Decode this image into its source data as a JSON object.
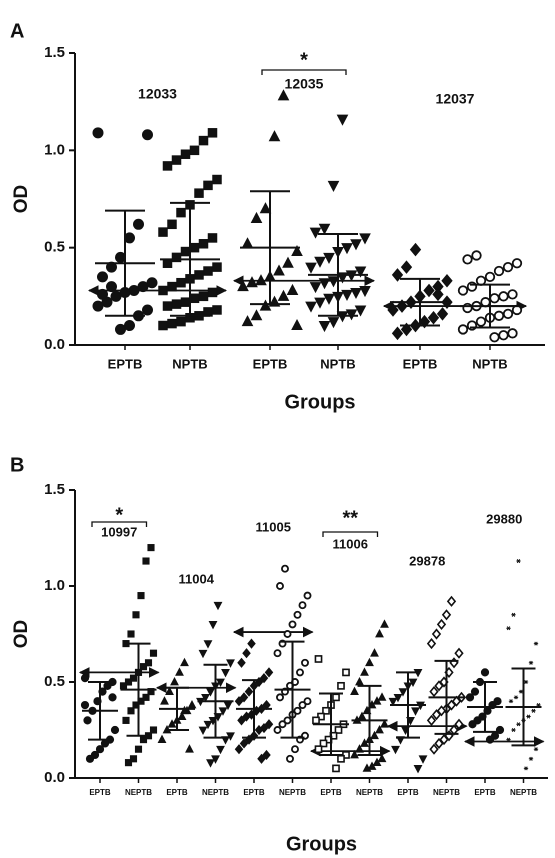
{
  "chart_data": [
    {
      "type": "scatter",
      "panel": "A",
      "ylabel": "OD",
      "xlabel": "Groups",
      "ylim": [
        0,
        1.5
      ],
      "yticks": [
        {
          "value": 0,
          "label": "0.0"
        },
        0.5,
        {
          "value": 1,
          "label": "1.0"
        },
        1.5
      ],
      "categories": [
        "EPTB",
        "NPTB",
        "EPTB",
        "NPTB",
        "EPTB",
        "NPTB"
      ],
      "markers": [
        "circle",
        "square",
        "triangle",
        "triangle-down",
        "diamond",
        "ring"
      ],
      "groups": [
        {
          "name": "12033",
          "cutoff": 0.28
        },
        {
          "name": "12035",
          "cutoff": 0.33,
          "significance": "*"
        },
        {
          "name": "12037",
          "cutoff": 0.2
        }
      ],
      "points": [
        [
          1.09,
          1.08,
          0.62,
          0.55,
          0.45,
          0.4,
          0.35,
          0.32,
          0.3,
          0.28,
          0.27,
          0.25,
          0.22,
          0.2,
          0.18,
          0.15,
          0.1,
          0.08,
          0.3,
          0.26
        ],
        [
          1.09,
          1.05,
          1.0,
          0.98,
          0.95,
          0.92,
          0.85,
          0.82,
          0.78,
          0.72,
          0.68,
          0.62,
          0.58,
          0.55,
          0.52,
          0.5,
          0.48,
          0.45,
          0.42,
          0.4,
          0.38,
          0.36,
          0.34,
          0.32,
          0.3,
          0.28,
          0.27,
          0.25,
          0.24,
          0.22,
          0.21,
          0.2,
          0.18,
          0.17,
          0.15,
          0.14,
          0.12,
          0.11,
          0.1
        ],
        [
          1.28,
          1.07,
          0.7,
          0.65,
          0.52,
          0.48,
          0.42,
          0.38,
          0.35,
          0.33,
          0.32,
          0.3,
          0.28,
          0.25,
          0.22,
          0.2,
          0.15,
          0.12,
          0.1
        ],
        [
          1.16,
          0.82,
          0.6,
          0.58,
          0.55,
          0.52,
          0.5,
          0.48,
          0.45,
          0.43,
          0.4,
          0.38,
          0.36,
          0.35,
          0.33,
          0.32,
          0.3,
          0.28,
          0.27,
          0.26,
          0.25,
          0.24,
          0.22,
          0.2,
          0.18,
          0.16,
          0.15,
          0.12,
          0.1
        ],
        [
          0.49,
          0.4,
          0.36,
          0.33,
          0.3,
          0.28,
          0.25,
          0.22,
          0.2,
          0.18,
          0.16,
          0.14,
          0.12,
          0.1,
          0.08,
          0.06,
          0.22,
          0.26
        ],
        [
          0.46,
          0.44,
          0.42,
          0.4,
          0.38,
          0.35,
          0.33,
          0.3,
          0.28,
          0.26,
          0.25,
          0.24,
          0.22,
          0.2,
          0.19,
          0.18,
          0.16,
          0.15,
          0.14,
          0.12,
          0.1,
          0.08,
          0.06,
          0.05,
          0.04
        ]
      ],
      "means": [
        0.42,
        0.44,
        0.5,
        0.36,
        0.22,
        0.2
      ],
      "sds": [
        0.27,
        0.29,
        0.29,
        0.21,
        0.12,
        0.11
      ]
    },
    {
      "type": "scatter",
      "panel": "B",
      "ylabel": "OD",
      "xlabel": "Groups",
      "ylim": [
        0,
        1.5
      ],
      "yticks": [
        {
          "value": 0,
          "label": "0.0"
        },
        0.5,
        {
          "value": 1,
          "label": "1.0"
        },
        1.5
      ],
      "categories": [
        "EPTB",
        "NEPTB",
        "EPTB",
        "NEPTB",
        "EPTB",
        "NEPTB",
        "EPTB",
        "NEPTB",
        "EPTB",
        "NEPTB",
        "EPTB",
        "NEPTB"
      ],
      "markers": [
        "circle",
        "square",
        "triangle",
        "triangle-down",
        "diamond",
        "ring",
        "square-open",
        "triangle",
        "triangle-down",
        "diamond-open",
        "circle",
        "star"
      ],
      "groups": [
        {
          "name": "10997",
          "cutoff": 0.55,
          "significance": "*"
        },
        {
          "name": "11004",
          "cutoff": 0.47
        },
        {
          "name": "11005",
          "cutoff": 0.76
        },
        {
          "name": "11006",
          "cutoff": 0.14,
          "significance": "**"
        },
        {
          "name": "29878",
          "cutoff": 0.27
        },
        {
          "name": "29880",
          "cutoff": 0.19
        }
      ],
      "points": [
        [
          0.52,
          0.5,
          0.48,
          0.45,
          0.4,
          0.35,
          0.3,
          0.25,
          0.2,
          0.18,
          0.15,
          0.12,
          0.1,
          0.38,
          0.42
        ],
        [
          1.2,
          1.13,
          0.95,
          0.85,
          0.75,
          0.7,
          0.65,
          0.6,
          0.58,
          0.55,
          0.52,
          0.5,
          0.48,
          0.45,
          0.42,
          0.4,
          0.38,
          0.35,
          0.3,
          0.25,
          0.22,
          0.2,
          0.15,
          0.1,
          0.08
        ],
        [
          0.6,
          0.55,
          0.5,
          0.45,
          0.4,
          0.38,
          0.35,
          0.32,
          0.3,
          0.28,
          0.25,
          0.2,
          0.15,
          0.35
        ],
        [
          0.9,
          0.8,
          0.7,
          0.65,
          0.6,
          0.55,
          0.5,
          0.48,
          0.45,
          0.42,
          0.4,
          0.38,
          0.35,
          0.32,
          0.3,
          0.28,
          0.25,
          0.22,
          0.2,
          0.15,
          0.1,
          0.08
        ],
        [
          0.7,
          0.65,
          0.6,
          0.55,
          0.52,
          0.5,
          0.48,
          0.45,
          0.42,
          0.4,
          0.38,
          0.36,
          0.35,
          0.33,
          0.32,
          0.3,
          0.28,
          0.26,
          0.25,
          0.22,
          0.2,
          0.18,
          0.15,
          0.12,
          0.1
        ],
        [
          1.09,
          1.0,
          0.95,
          0.9,
          0.85,
          0.8,
          0.75,
          0.7,
          0.65,
          0.6,
          0.55,
          0.5,
          0.48,
          0.45,
          0.42,
          0.4,
          0.38,
          0.35,
          0.33,
          0.3,
          0.28,
          0.25,
          0.22,
          0.2,
          0.15,
          0.1
        ],
        [
          0.62,
          0.55,
          0.48,
          0.42,
          0.38,
          0.35,
          0.32,
          0.3,
          0.28,
          0.25,
          0.22,
          0.2,
          0.18,
          0.15,
          0.12,
          0.1,
          0.05
        ],
        [
          0.8,
          0.75,
          0.65,
          0.6,
          0.55,
          0.5,
          0.45,
          0.42,
          0.4,
          0.38,
          0.35,
          0.32,
          0.3,
          0.28,
          0.25,
          0.22,
          0.2,
          0.18,
          0.15,
          0.12,
          0.1,
          0.08,
          0.06,
          0.05
        ],
        [
          0.55,
          0.5,
          0.48,
          0.45,
          0.42,
          0.4,
          0.38,
          0.35,
          0.3,
          0.25,
          0.2,
          0.15,
          0.1,
          0.05
        ],
        [
          0.92,
          0.85,
          0.8,
          0.75,
          0.7,
          0.65,
          0.6,
          0.55,
          0.5,
          0.48,
          0.45,
          0.42,
          0.4,
          0.38,
          0.36,
          0.35,
          0.33,
          0.3,
          0.28,
          0.25,
          0.22,
          0.2,
          0.18,
          0.15
        ],
        [
          0.55,
          0.5,
          0.45,
          0.42,
          0.4,
          0.38,
          0.35,
          0.32,
          0.3,
          0.28,
          0.25,
          0.22,
          0.2
        ],
        [
          1.13,
          0.85,
          0.78,
          0.7,
          0.6,
          0.5,
          0.45,
          0.42,
          0.4,
          0.38,
          0.35,
          0.32,
          0.3,
          0.28,
          0.25,
          0.2,
          0.15,
          0.1,
          0.05
        ]
      ],
      "means": [
        0.35,
        0.46,
        0.36,
        0.4,
        0.36,
        0.46,
        0.28,
        0.3,
        0.38,
        0.42,
        0.37,
        0.37
      ],
      "sds": [
        0.15,
        0.24,
        0.11,
        0.19,
        0.15,
        0.25,
        0.16,
        0.18,
        0.17,
        0.19,
        0.13,
        0.2
      ]
    }
  ]
}
